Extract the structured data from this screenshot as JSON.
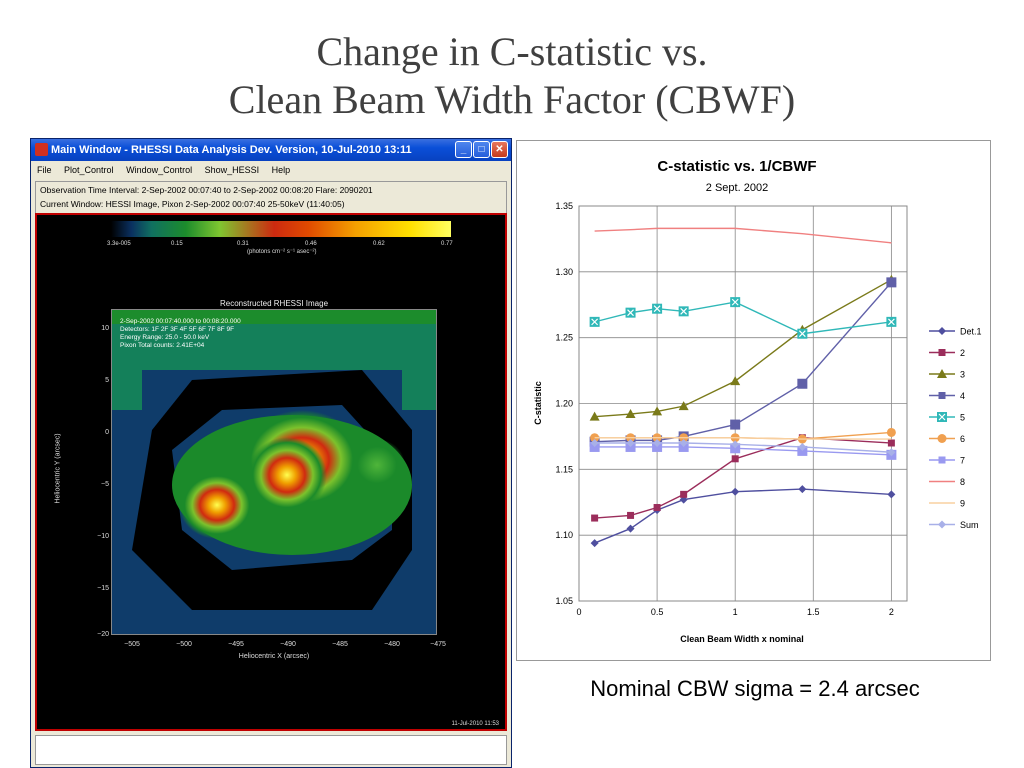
{
  "slide": {
    "title_line1": "Change in C-statistic vs.",
    "title_line2": "Clean Beam Width Factor (CBWF)",
    "caption": "Nominal CBW sigma = 2.4 arcsec"
  },
  "window": {
    "title": "Main Window - RHESSI Data Analysis Dev. Version, 10-Jul-2010 13:11",
    "menu": [
      "File",
      "Plot_Control",
      "Window_Control",
      "Show_HESSI",
      "Help"
    ],
    "info_line1": "Observation Time Interval:  2-Sep-2002 00:07:40  to  2-Sep-2002 00:08:20       Flare: 2090201",
    "info_line2": "Current Window:  HESSI Image, Pixon  2-Sep-2002 00:07:40 25-50keV (11:40:05)",
    "colorbar_ticks": [
      "3.3e-005",
      "0.15",
      "0.31",
      "0.46",
      "0.62",
      "0.77"
    ],
    "colorbar_units": "(photons cm⁻² s⁻¹ asec⁻²)",
    "image_title": "Reconstructed RHESSI Image",
    "image_legend": [
      "2-Sep-2002 00:07:40.000 to 00:08:20.000",
      "Detectors: 1F 2F 3F 4F 5F 6F 7F 8F 9F",
      "Energy Range: 25.0 - 50.0 keV",
      "Pixon     Total counts: 2.41E+04"
    ],
    "image_yticks": [
      "10",
      "5",
      "0",
      "−5",
      "−10",
      "−15",
      "−20"
    ],
    "image_xticks": [
      "−505",
      "−500",
      "−495",
      "−490",
      "−485",
      "−480",
      "−475"
    ],
    "image_xlabel": "Heliocentric X (arcsec)",
    "image_ylabel": "Heliocentric Y (arcsec)",
    "image_date": "11-Jul-2010 11:53",
    "colors": {
      "frame": "#c00000",
      "titlebar": "#0a4fd8"
    }
  },
  "chart_data": {
    "type": "line",
    "title": "C-statistic vs. 1/CBWF",
    "subtitle": "2 Sept. 2002",
    "xlabel": "Clean Beam Width x nominal",
    "ylabel": "C-statistic",
    "xlim": [
      0,
      2.1
    ],
    "ylim": [
      1.05,
      1.35
    ],
    "xticks": [
      0,
      0.5,
      1,
      1.5,
      2
    ],
    "yticks": [
      1.05,
      1.1,
      1.15,
      1.2,
      1.25,
      1.3,
      1.35
    ],
    "xtick_labels": [
      "0",
      "0.5",
      "1",
      "1.5",
      "2"
    ],
    "ytick_labels": [
      "1.05",
      "1.10",
      "1.15",
      "1.20",
      "1.25",
      "1.30",
      "1.35"
    ],
    "grid": true,
    "legend": "right",
    "x": [
      0.1,
      0.33,
      0.5,
      0.67,
      1.0,
      1.43,
      2.0
    ],
    "series": [
      {
        "name": "Det.1",
        "color": "#4f4f9f",
        "marker": "diamond",
        "values": [
          1.094,
          1.105,
          1.119,
          1.127,
          1.133,
          1.135,
          1.131
        ]
      },
      {
        "name": "2",
        "color": "#9b2d5b",
        "marker": "square",
        "values": [
          1.113,
          1.115,
          1.121,
          1.131,
          1.158,
          1.174,
          1.17
        ]
      },
      {
        "name": "3",
        "color": "#7a7a1a",
        "marker": "triangle",
        "values": [
          1.19,
          1.192,
          1.194,
          1.198,
          1.217,
          1.256,
          1.294
        ]
      },
      {
        "name": "4",
        "color": "#6060a8",
        "marker": "bigsquare",
        "values": [
          1.171,
          1.172,
          1.172,
          1.175,
          1.184,
          1.215,
          1.292
        ]
      },
      {
        "name": "5",
        "color": "#30b8b8",
        "marker": "xbox",
        "values": [
          1.262,
          1.269,
          1.272,
          1.27,
          1.277,
          1.253,
          1.262
        ]
      },
      {
        "name": "6",
        "color": "#f0a050",
        "marker": "circle",
        "values": [
          1.174,
          1.174,
          1.174,
          1.174,
          1.174,
          1.173,
          1.178
        ]
      },
      {
        "name": "7",
        "color": "#9999f0",
        "marker": "bigsquare",
        "values": [
          1.167,
          1.167,
          1.167,
          1.167,
          1.166,
          1.164,
          1.161
        ]
      },
      {
        "name": "8",
        "color": "#f08080",
        "marker": "none",
        "values": [
          1.331,
          1.332,
          1.333,
          1.333,
          1.333,
          1.329,
          1.322
        ]
      },
      {
        "name": "9",
        "color": "#f8d0a0",
        "marker": "none",
        "values": [
          1.174,
          1.174,
          1.174,
          1.174,
          1.174,
          1.173,
          1.173
        ]
      },
      {
        "name": "Sum",
        "color": "#a8b0e8",
        "marker": "diamond",
        "values": [
          1.17,
          1.17,
          1.17,
          1.17,
          1.169,
          1.167,
          1.163
        ]
      }
    ]
  }
}
